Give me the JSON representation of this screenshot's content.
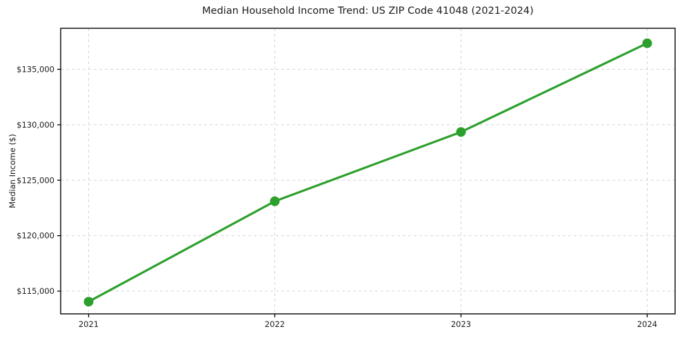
{
  "chart_data": {
    "type": "line",
    "title": "Median Household Income Trend: US ZIP Code 41048 (2021-2024)",
    "xlabel": "",
    "ylabel": "Median Income ($)",
    "x": [
      2021,
      2022,
      2023,
      2024
    ],
    "values": [
      114050,
      123100,
      129350,
      137350
    ],
    "xticks": [
      2021,
      2022,
      2023,
      2024
    ],
    "xtick_labels": [
      "2021",
      "2022",
      "2023",
      "2024"
    ],
    "yticks": [
      115000,
      120000,
      125000,
      130000,
      135000
    ],
    "ytick_labels": [
      "$115,000",
      "$120,000",
      "$125,000",
      "$130,000",
      "$135,000"
    ],
    "xlim": [
      2020.85,
      2024.15
    ],
    "ylim": [
      112950,
      138700
    ],
    "grid": true,
    "grid_style": "dashed",
    "legend": false,
    "line_color": "#2ca02c",
    "marker": "circle",
    "background_color": "#ffffff",
    "grid_color": "#d4d4d4",
    "spine_color": "#000000",
    "text_color": "#1a1a1a"
  }
}
